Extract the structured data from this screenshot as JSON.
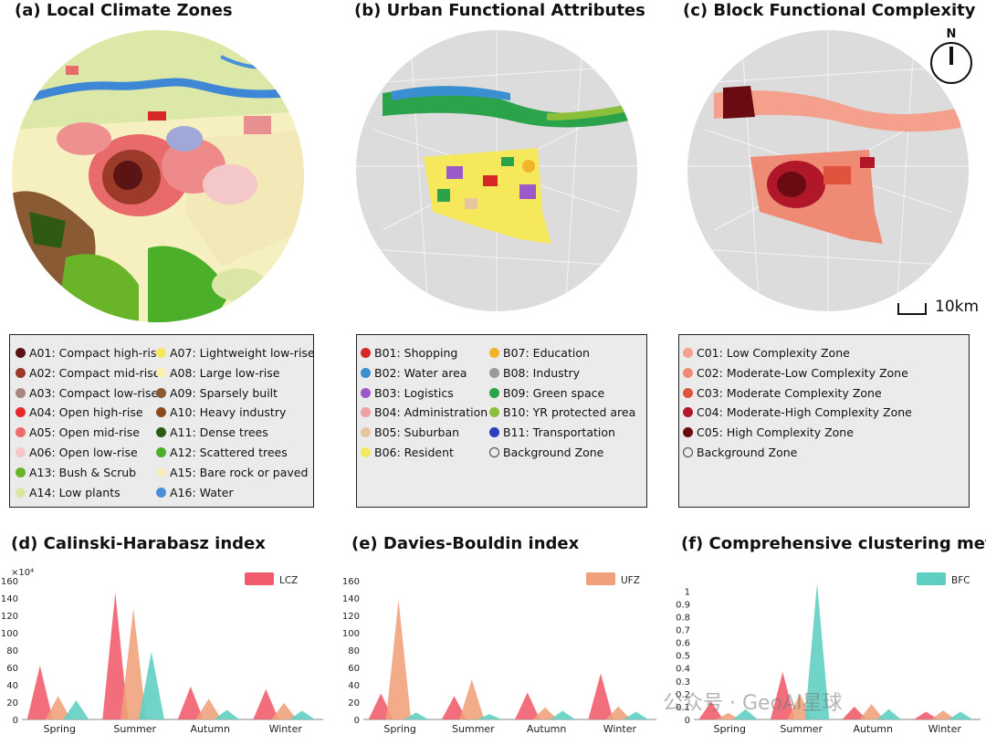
{
  "panels": {
    "a": {
      "title": "(a) Local Climate Zones"
    },
    "b": {
      "title": "(b) Urban Functional Attributes"
    },
    "c": {
      "title": "(c) Block Functional Complexity"
    },
    "d": {
      "title": "(d) Calinski-Harabasz index"
    },
    "e": {
      "title": "(e) Davies-Bouldin index"
    },
    "f": {
      "title": "(f) Comprehensive clustering metric"
    }
  },
  "north_label": "N",
  "scale_label": "10km",
  "legend_lcz": [
    {
      "label": "A01: Compact high-rise",
      "color": "#5a1414"
    },
    {
      "label": "A07: Lightweight low-rise",
      "color": "#f7e85a"
    },
    {
      "label": "A02: Compact mid-rise",
      "color": "#9c3a2a"
    },
    {
      "label": "A08: Large low-rise",
      "color": "#f8f0b0"
    },
    {
      "label": "A03: Compact low-rise",
      "color": "#a98580"
    },
    {
      "label": "A09: Sparsely built",
      "color": "#8a5a34"
    },
    {
      "label": "A04: Open high-rise",
      "color": "#e82a2a"
    },
    {
      "label": "A10: Heavy industry",
      "color": "#8c4a1a"
    },
    {
      "label": "A05: Open mid-rise",
      "color": "#ef6a6a"
    },
    {
      "label": "A11: Dense trees",
      "color": "#2e5a14"
    },
    {
      "label": "A06: Open low-rise",
      "color": "#f4c8c8"
    },
    {
      "label": "A12: Scattered trees",
      "color": "#4caf2a"
    },
    {
      "label": "A13: Bush & Scrub",
      "color": "#6ab42a"
    },
    {
      "label": "A15: Bare rock or paved",
      "color": "#f5ecc2"
    },
    {
      "label": "A14: Low plants",
      "color": "#d9e6a6"
    },
    {
      "label": "A16: Water",
      "color": "#4a90d8"
    }
  ],
  "legend_ufz": [
    {
      "label": "B01: Shopping",
      "color": "#d62828"
    },
    {
      "label": "B07: Education",
      "color": "#f0b429"
    },
    {
      "label": "B02: Water area",
      "color": "#3a8fd0"
    },
    {
      "label": "B08: Industry",
      "color": "#9a9a9a"
    },
    {
      "label": "B03: Logistics",
      "color": "#9b59c9"
    },
    {
      "label": "B09: Green space",
      "color": "#2aa34a"
    },
    {
      "label": "B04: Administration",
      "color": "#f0a0a0"
    },
    {
      "label": "B10: YR protected area",
      "color": "#8bbf3a"
    },
    {
      "label": "B05: Suburban",
      "color": "#e5c6a0"
    },
    {
      "label": "B11: Transportation",
      "color": "#2d3fbf"
    },
    {
      "label": "B06: Resident",
      "color": "#f5e85a"
    },
    {
      "label": "Background Zone",
      "color": "ring"
    }
  ],
  "legend_bfc": [
    {
      "label": "C01: Low Complexity Zone",
      "color": "#f4a08c"
    },
    {
      "label": "C02: Moderate-Low Complexity Zone",
      "color": "#ef8b75"
    },
    {
      "label": "C03: Moderate Complexity Zone",
      "color": "#e0533d"
    },
    {
      "label": "C04: Moderate-High Complexity Zone",
      "color": "#b0182a"
    },
    {
      "label": "C05: High Complexity Zone",
      "color": "#6a0b12"
    },
    {
      "label": "Background Zone",
      "color": "ring"
    }
  ],
  "chart_data": [
    {
      "type": "area",
      "title": "(d) Calinski-Harabasz index",
      "legend": "LCZ",
      "multiplier_label": "×10⁴",
      "categories": [
        "Spring",
        "Summer",
        "Autumn",
        "Winter"
      ],
      "yticks": [
        0,
        20,
        40,
        60,
        80,
        100,
        120,
        140,
        160
      ],
      "ylim": [
        0,
        160
      ],
      "series": [
        {
          "name": "LCZ",
          "color": "#f05a6a",
          "values": [
            62,
            146,
            38,
            35
          ]
        },
        {
          "name": "UFZ",
          "color": "#f0a07a",
          "values": [
            27,
            128,
            24,
            19
          ]
        },
        {
          "name": "BFC",
          "color": "#5ccfc0",
          "values": [
            22,
            78,
            11,
            10
          ]
        }
      ]
    },
    {
      "type": "area",
      "title": "(e) Davies-Bouldin index",
      "legend": "UFZ",
      "categories": [
        "Spring",
        "Summer",
        "Autumn",
        "Winter"
      ],
      "yticks": [
        0,
        20,
        40,
        60,
        80,
        100,
        120,
        140,
        160
      ],
      "ylim": [
        0,
        160
      ],
      "series": [
        {
          "name": "LCZ",
          "color": "#f05a6a",
          "values": [
            30,
            27,
            31,
            53
          ]
        },
        {
          "name": "UFZ",
          "color": "#f0a07a",
          "values": [
            138,
            46,
            14,
            15
          ]
        },
        {
          "name": "BFC",
          "color": "#5ccfc0",
          "values": [
            8,
            6,
            10,
            9
          ]
        }
      ]
    },
    {
      "type": "area",
      "title": "(f) Comprehensive clustering metric",
      "legend": "BFC",
      "categories": [
        "Spring",
        "Summer",
        "Autumn",
        "Winter"
      ],
      "yticks": [
        0,
        0.1,
        0.2,
        0.3,
        0.4,
        0.5,
        0.6,
        0.7,
        0.8,
        0.9,
        1
      ],
      "ylim": [
        0,
        1.08
      ],
      "series": [
        {
          "name": "LCZ",
          "color": "#f05a6a",
          "values": [
            0.14,
            0.37,
            0.1,
            0.06
          ]
        },
        {
          "name": "UFZ",
          "color": "#f0a07a",
          "values": [
            0.05,
            0.2,
            0.12,
            0.07
          ]
        },
        {
          "name": "BFC",
          "color": "#5ccfc0",
          "values": [
            0.08,
            1.06,
            0.08,
            0.06
          ]
        }
      ]
    }
  ],
  "watermark": "公众号 · GeoAI星球"
}
